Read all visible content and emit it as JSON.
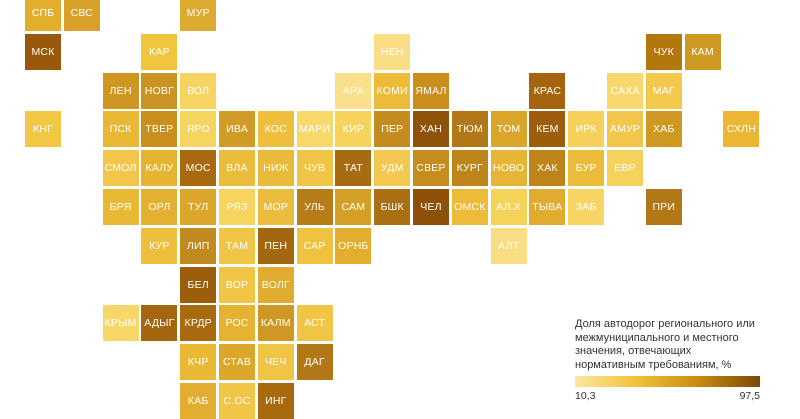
{
  "legend": {
    "title": "Доля автодорог регионального или межмуниципального и местного значения, отвечающих нормативным требованиям, %",
    "min_label": "10,3",
    "max_label": "97,5",
    "min_color": "#fbe7a0",
    "max_color": "#7c4a05"
  },
  "regions": [
    {
      "label": "СПБ",
      "col": 0,
      "row": 0,
      "color": "#e2ae2c"
    },
    {
      "label": "СВС",
      "col": 1,
      "row": 0,
      "color": "#d9a02a"
    },
    {
      "label": "МУР",
      "col": 4,
      "row": 0,
      "color": "#ddaa30"
    },
    {
      "label": "МСК",
      "col": 0,
      "row": 1,
      "color": "#99590c"
    },
    {
      "label": "КАР",
      "col": 3,
      "row": 1,
      "color": "#f1c63f"
    },
    {
      "label": "НЕН",
      "col": 9,
      "row": 1,
      "color": "#f9de86"
    },
    {
      "label": "ЧУК",
      "col": 16,
      "row": 1,
      "color": "#b2780e"
    },
    {
      "label": "КАМ",
      "col": 17,
      "row": 1,
      "color": "#cf9a22"
    },
    {
      "label": "ЛЕН",
      "col": 2,
      "row": 2,
      "color": "#cf9722"
    },
    {
      "label": "НОВГ",
      "col": 3,
      "row": 2,
      "color": "#c99421"
    },
    {
      "label": "ВОЛ",
      "col": 4,
      "row": 2,
      "color": "#f6d45f"
    },
    {
      "label": "АРХ",
      "col": 8,
      "row": 2,
      "color": "#fae08c"
    },
    {
      "label": "КОМИ",
      "col": 9,
      "row": 2,
      "color": "#ecbb38"
    },
    {
      "label": "ЯМАЛ",
      "col": 10,
      "row": 2,
      "color": "#c98f1c"
    },
    {
      "label": "КРАС",
      "col": 13,
      "row": 2,
      "color": "#a5650f"
    },
    {
      "label": "САХА",
      "col": 15,
      "row": 2,
      "color": "#f8d86e"
    },
    {
      "label": "МАГ",
      "col": 16,
      "row": 2,
      "color": "#f2c84d"
    },
    {
      "label": "КНГ",
      "col": 0,
      "row": 3,
      "color": "#f1c743"
    },
    {
      "label": "ПСК",
      "col": 2,
      "row": 3,
      "color": "#e8b834"
    },
    {
      "label": "ТВЕР",
      "col": 3,
      "row": 3,
      "color": "#c98f1c"
    },
    {
      "label": "ЯРО",
      "col": 4,
      "row": 3,
      "color": "#f5d45f"
    },
    {
      "label": "ИВА",
      "col": 5,
      "row": 3,
      "color": "#d09c26"
    },
    {
      "label": "КОС",
      "col": 6,
      "row": 3,
      "color": "#eebe3c"
    },
    {
      "label": "МАРИ",
      "col": 7,
      "row": 3,
      "color": "#f7d868"
    },
    {
      "label": "КИР",
      "col": 8,
      "row": 3,
      "color": "#f6d45c"
    },
    {
      "label": "ПЕР",
      "col": 9,
      "row": 3,
      "color": "#c48c1f"
    },
    {
      "label": "ХАН",
      "col": 10,
      "row": 3,
      "color": "#8f520b"
    },
    {
      "label": "ТЮМ",
      "col": 11,
      "row": 3,
      "color": "#b27716"
    },
    {
      "label": "ТОМ",
      "col": 12,
      "row": 3,
      "color": "#d9a52a"
    },
    {
      "label": "КЕМ",
      "col": 13,
      "row": 3,
      "color": "#9c5d0d"
    },
    {
      "label": "ИРК",
      "col": 14,
      "row": 3,
      "color": "#f5d05a"
    },
    {
      "label": "АМУР",
      "col": 15,
      "row": 3,
      "color": "#f2c64b"
    },
    {
      "label": "ХАБ",
      "col": 16,
      "row": 3,
      "color": "#cf9822"
    },
    {
      "label": "СХЛН",
      "col": 18,
      "row": 3,
      "color": "#ebb632"
    },
    {
      "label": "СМОЛ",
      "col": 2,
      "row": 4,
      "color": "#f2c64a"
    },
    {
      "label": "КАЛУ",
      "col": 3,
      "row": 4,
      "color": "#e6b433"
    },
    {
      "label": "МОС",
      "col": 4,
      "row": 4,
      "color": "#a8690f"
    },
    {
      "label": "ВЛА",
      "col": 5,
      "row": 4,
      "color": "#ebbc3b"
    },
    {
      "label": "НИЖ",
      "col": 6,
      "row": 4,
      "color": "#eabb3a"
    },
    {
      "label": "ЧУВ",
      "col": 7,
      "row": 4,
      "color": "#f0c444"
    },
    {
      "label": "ТАТ",
      "col": 8,
      "row": 4,
      "color": "#a86b12"
    },
    {
      "label": "УДМ",
      "col": 9,
      "row": 4,
      "color": "#f2c94e"
    },
    {
      "label": "СВЕР",
      "col": 10,
      "row": 4,
      "color": "#c58d1f"
    },
    {
      "label": "КУРГ",
      "col": 11,
      "row": 4,
      "color": "#be851a"
    },
    {
      "label": "НОВО",
      "col": 12,
      "row": 4,
      "color": "#e7b535"
    },
    {
      "label": "ХАК",
      "col": 13,
      "row": 4,
      "color": "#bd8519"
    },
    {
      "label": "БУР",
      "col": 14,
      "row": 4,
      "color": "#ebbb3a"
    },
    {
      "label": "ЕВР",
      "col": 15,
      "row": 4,
      "color": "#f5d25b"
    },
    {
      "label": "БРЯ",
      "col": 2,
      "row": 5,
      "color": "#e9b936"
    },
    {
      "label": "ОРЛ",
      "col": 3,
      "row": 5,
      "color": "#e4b031"
    },
    {
      "label": "ТУЛ",
      "col": 4,
      "row": 5,
      "color": "#dca62b"
    },
    {
      "label": "РЯЗ",
      "col": 5,
      "row": 5,
      "color": "#f6d45e"
    },
    {
      "label": "МОР",
      "col": 6,
      "row": 5,
      "color": "#ecbd3d"
    },
    {
      "label": "УЛЬ",
      "col": 7,
      "row": 5,
      "color": "#b67c18"
    },
    {
      "label": "САМ",
      "col": 8,
      "row": 5,
      "color": "#d39f27"
    },
    {
      "label": "БШК",
      "col": 9,
      "row": 5,
      "color": "#ab6f13"
    },
    {
      "label": "ЧЕЛ",
      "col": 10,
      "row": 5,
      "color": "#8c500a"
    },
    {
      "label": "ОМСК",
      "col": 11,
      "row": 5,
      "color": "#ecbb38"
    },
    {
      "label": "АЛ.Х",
      "col": 12,
      "row": 5,
      "color": "#f5d258"
    },
    {
      "label": "ТЫВА",
      "col": 13,
      "row": 5,
      "color": "#e0ab2e"
    },
    {
      "label": "ЗАБ",
      "col": 14,
      "row": 5,
      "color": "#f7d565"
    },
    {
      "label": "ПРИ",
      "col": 16,
      "row": 5,
      "color": "#b27716"
    },
    {
      "label": "КУР",
      "col": 3,
      "row": 6,
      "color": "#eebf3e"
    },
    {
      "label": "ЛИП",
      "col": 4,
      "row": 6,
      "color": "#c18a1e"
    },
    {
      "label": "ТАМ",
      "col": 5,
      "row": 6,
      "color": "#f0c444"
    },
    {
      "label": "ПЕН",
      "col": 6,
      "row": 6,
      "color": "#a36710"
    },
    {
      "label": "САР",
      "col": 7,
      "row": 6,
      "color": "#efc240"
    },
    {
      "label": "ОРНБ",
      "col": 8,
      "row": 6,
      "color": "#e3ae30"
    },
    {
      "label": "АЛТ",
      "col": 12,
      "row": 6,
      "color": "#f9dd82"
    },
    {
      "label": "БЕЛ",
      "col": 4,
      "row": 7,
      "color": "#9c5d0d"
    },
    {
      "label": "ВОР",
      "col": 5,
      "row": 7,
      "color": "#f1c545"
    },
    {
      "label": "ВОЛГ",
      "col": 6,
      "row": 7,
      "color": "#e0ab2e"
    },
    {
      "label": "КРЫМ",
      "col": 2,
      "row": 8,
      "color": "#f7d768"
    },
    {
      "label": "АДЫГ",
      "col": 3,
      "row": 8,
      "color": "#a4660f"
    },
    {
      "label": "КРДР",
      "col": 4,
      "row": 8,
      "color": "#a8690f"
    },
    {
      "label": "РОС",
      "col": 5,
      "row": 8,
      "color": "#e5b232"
    },
    {
      "label": "КАЛМ",
      "col": 6,
      "row": 8,
      "color": "#cf9822"
    },
    {
      "label": "АСТ",
      "col": 7,
      "row": 8,
      "color": "#f1c545"
    },
    {
      "label": "КЧР",
      "col": 4,
      "row": 9,
      "color": "#e9b936"
    },
    {
      "label": "СТАВ",
      "col": 5,
      "row": 9,
      "color": "#dca62b"
    },
    {
      "label": "ЧЕЧ",
      "col": 6,
      "row": 9,
      "color": "#f0c444"
    },
    {
      "label": "ДАГ",
      "col": 7,
      "row": 9,
      "color": "#b27716"
    },
    {
      "label": "КАБ",
      "col": 4,
      "row": 10,
      "color": "#e3ae30"
    },
    {
      "label": "С.ОС",
      "col": 5,
      "row": 10,
      "color": "#f1c545"
    },
    {
      "label": "ИНГ",
      "col": 6,
      "row": 10,
      "color": "#a8690f"
    }
  ]
}
